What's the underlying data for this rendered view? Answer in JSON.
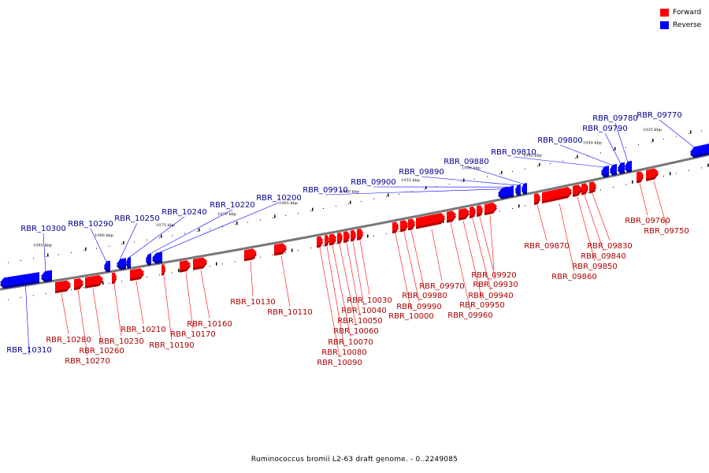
{
  "caption": "Ruminococcus bromii L2-63 draft genome. - 0..2249085",
  "legend": [
    {
      "label": "Forward",
      "color": "#ff0000"
    },
    {
      "label": "Reverse",
      "color": "#0000ff"
    }
  ],
  "colors": {
    "forward": "#ff0000",
    "forward_label": "#aa0000",
    "reverse": "#0000ff",
    "reverse_label": "#000088",
    "backbone": "#777777"
  },
  "kbp_ticks": [
    "1035 kbp",
    "1040 kbp",
    "1045 kbp",
    "1050 kbp",
    "1055 kbp",
    "1060 kbp",
    "1065 kbp",
    "1070 kbp",
    "1075 kbp",
    "1080 kbp",
    "1085 kbp"
  ],
  "genes": [
    {
      "name": "RBR_09750",
      "strand": "forward"
    },
    {
      "name": "RBR_09760",
      "strand": "forward"
    },
    {
      "name": "RBR_09770",
      "strand": "reverse"
    },
    {
      "name": "RBR_09780",
      "strand": "reverse"
    },
    {
      "name": "RBR_09790",
      "strand": "reverse"
    },
    {
      "name": "RBR_09800",
      "strand": "reverse"
    },
    {
      "name": "RBR_09810",
      "strand": "reverse"
    },
    {
      "name": "RBR_09830",
      "strand": "forward"
    },
    {
      "name": "RBR_09840",
      "strand": "forward"
    },
    {
      "name": "RBR_09850",
      "strand": "forward"
    },
    {
      "name": "RBR_09860",
      "strand": "forward"
    },
    {
      "name": "RBR_09870",
      "strand": "forward"
    },
    {
      "name": "RBR_09880",
      "strand": "reverse"
    },
    {
      "name": "RBR_09890",
      "strand": "reverse"
    },
    {
      "name": "RBR_09900",
      "strand": "reverse"
    },
    {
      "name": "RBR_09910",
      "strand": "reverse"
    },
    {
      "name": "RBR_09920",
      "strand": "forward"
    },
    {
      "name": "RBR_09930",
      "strand": "forward"
    },
    {
      "name": "RBR_09940",
      "strand": "forward"
    },
    {
      "name": "RBR_09950",
      "strand": "forward"
    },
    {
      "name": "RBR_09960",
      "strand": "forward"
    },
    {
      "name": "RBR_09970",
      "strand": "forward"
    },
    {
      "name": "RBR_09980",
      "strand": "forward"
    },
    {
      "name": "RBR_09990",
      "strand": "forward"
    },
    {
      "name": "RBR_10000",
      "strand": "forward"
    },
    {
      "name": "RBR_10030",
      "strand": "forward"
    },
    {
      "name": "RBR_10040",
      "strand": "forward"
    },
    {
      "name": "RBR_10050",
      "strand": "forward"
    },
    {
      "name": "RBR_10060",
      "strand": "forward"
    },
    {
      "name": "RBR_10070",
      "strand": "forward"
    },
    {
      "name": "RBR_10080",
      "strand": "forward"
    },
    {
      "name": "RBR_10090",
      "strand": "forward"
    },
    {
      "name": "RBR_10110",
      "strand": "forward"
    },
    {
      "name": "RBR_10130",
      "strand": "forward"
    },
    {
      "name": "RBR_10160",
      "strand": "forward"
    },
    {
      "name": "RBR_10170",
      "strand": "forward"
    },
    {
      "name": "RBR_10190",
      "strand": "forward"
    },
    {
      "name": "RBR_10200",
      "strand": "reverse"
    },
    {
      "name": "RBR_10210",
      "strand": "forward"
    },
    {
      "name": "RBR_10220",
      "strand": "reverse"
    },
    {
      "name": "RBR_10230",
      "strand": "forward"
    },
    {
      "name": "RBR_10240",
      "strand": "reverse"
    },
    {
      "name": "RBR_10250",
      "strand": "reverse"
    },
    {
      "name": "RBR_10260",
      "strand": "forward"
    },
    {
      "name": "RBR_10270",
      "strand": "forward"
    },
    {
      "name": "RBR_10280",
      "strand": "forward"
    },
    {
      "name": "RBR_10290",
      "strand": "reverse"
    },
    {
      "name": "RBR_10300",
      "strand": "reverse"
    },
    {
      "name": "RBR_10310",
      "strand": "reverse"
    }
  ]
}
